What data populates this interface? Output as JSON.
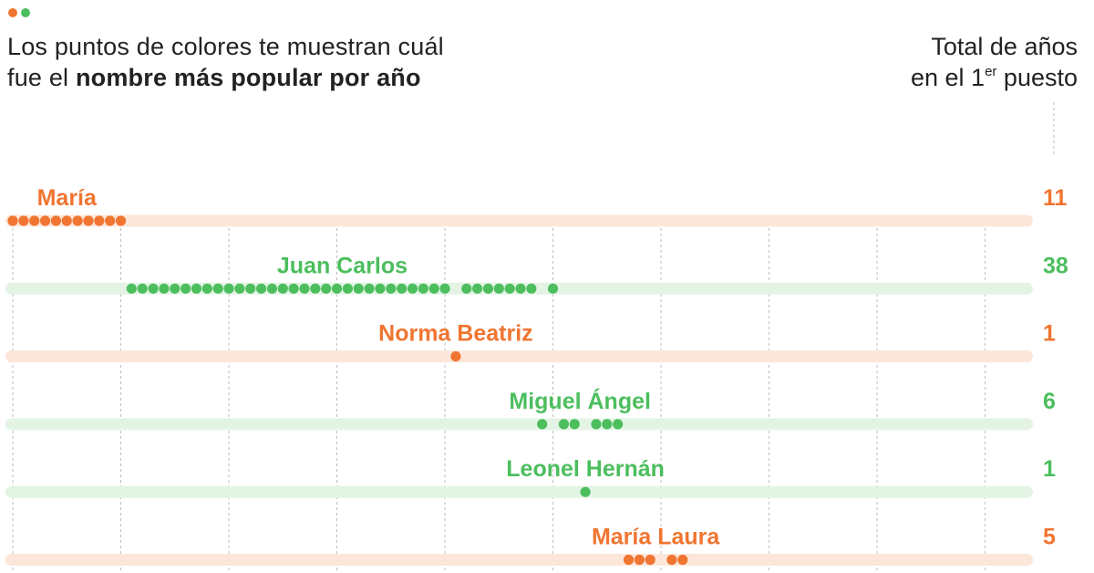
{
  "colors": {
    "orange": "#F07531",
    "green": "#4CBE5E",
    "orange_track": "#FCE6DA",
    "green_track": "#E3F4E4",
    "grid": "#BDBDBD"
  },
  "legend": {
    "dot_colors": [
      "#F07531",
      "#4CBE5E"
    ]
  },
  "header": {
    "line1": "Los puntos de colores te muestran cuál",
    "line2_prefix": "fue el ",
    "line2_bold": "nombre más popular por año",
    "right_line1": "Total de años",
    "right_line2_prefix": "en el 1",
    "right_line2_sup": "er",
    "right_line2_suffix": " puesto"
  },
  "chart_data": {
    "type": "scatter",
    "x_domain": [
      1922,
      2016
    ],
    "grid_every_years": 10,
    "series": [
      {
        "name": "María",
        "color": "orange",
        "total": "11",
        "years": [
          1922,
          1923,
          1924,
          1925,
          1926,
          1927,
          1928,
          1929,
          1930,
          1931,
          1932
        ]
      },
      {
        "name": "Juan Carlos",
        "color": "green",
        "total": "38",
        "years": [
          1933,
          1934,
          1935,
          1936,
          1937,
          1938,
          1939,
          1940,
          1941,
          1942,
          1943,
          1944,
          1945,
          1946,
          1947,
          1948,
          1949,
          1950,
          1951,
          1952,
          1953,
          1954,
          1955,
          1956,
          1957,
          1958,
          1959,
          1960,
          1961,
          1962,
          1964,
          1965,
          1966,
          1967,
          1968,
          1969,
          1970,
          1972
        ]
      },
      {
        "name": "Norma Beatriz",
        "color": "orange",
        "total": "1",
        "years": [
          1963
        ]
      },
      {
        "name": "Miguel Ángel",
        "color": "green",
        "total": "6",
        "years": [
          1971,
          1973,
          1974,
          1976,
          1977,
          1978
        ]
      },
      {
        "name": "Leonel Hernán",
        "color": "green",
        "total": "1",
        "years": [
          1975
        ]
      },
      {
        "name": "María Laura",
        "color": "orange",
        "total": "5",
        "years": [
          1979,
          1980,
          1981,
          1983,
          1984
        ]
      }
    ]
  }
}
